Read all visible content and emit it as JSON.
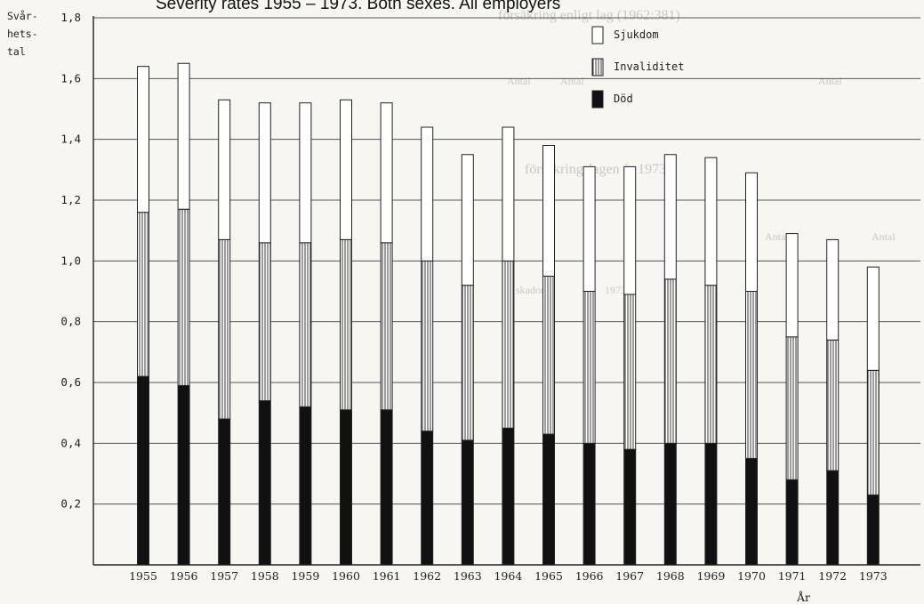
{
  "chart_data": {
    "type": "bar",
    "stacked": true,
    "title": "Severity rates 1955 – 1973. Both sexes. All employers",
    "ylabel": [
      "Svår-",
      "hets-",
      "tal"
    ],
    "xlabel": "År",
    "ylim": [
      0,
      1.8
    ],
    "yticks": [
      "0,2",
      "0,4",
      "0,6",
      "0,8",
      "1,0",
      "1,2",
      "1,4",
      "1,6",
      "1,8"
    ],
    "grid": true,
    "legend_position": "top-right",
    "categories": [
      "1955",
      "1956",
      "1957",
      "1958",
      "1959",
      "1960",
      "1961",
      "1962",
      "1963",
      "1964",
      "1965",
      "1966",
      "1967",
      "1968",
      "1969",
      "1970",
      "1971",
      "1972",
      "1973"
    ],
    "totals": [
      1.64,
      1.65,
      1.53,
      1.52,
      1.52,
      1.53,
      1.52,
      1.44,
      1.35,
      1.44,
      1.38,
      1.31,
      1.31,
      1.35,
      1.34,
      1.29,
      1.09,
      1.07,
      0.98
    ],
    "series": [
      {
        "name": "Död",
        "fill": "solid",
        "values": [
          0.62,
          0.59,
          0.48,
          0.54,
          0.52,
          0.51,
          0.51,
          0.44,
          0.41,
          0.45,
          0.43,
          0.4,
          0.38,
          0.4,
          0.4,
          0.35,
          0.28,
          0.31,
          0.23
        ]
      },
      {
        "name": "Invaliditet",
        "fill": "hatched",
        "values": [
          0.54,
          0.58,
          0.59,
          0.52,
          0.54,
          0.56,
          0.55,
          0.56,
          0.51,
          0.55,
          0.52,
          0.5,
          0.51,
          0.54,
          0.52,
          0.55,
          0.47,
          0.43,
          0.41
        ]
      },
      {
        "name": "Sjukdom",
        "fill": "white",
        "values": [
          0.48,
          0.48,
          0.46,
          0.46,
          0.46,
          0.46,
          0.46,
          0.44,
          0.43,
          0.44,
          0.43,
          0.41,
          0.42,
          0.41,
          0.42,
          0.39,
          0.34,
          0.33,
          0.34
        ]
      }
    ]
  },
  "background_text": [
    "försäkring enligt lag (1962:381)",
    "försäkringslagen år 1973",
    "Antal",
    "Antal",
    "Antal",
    "Antal",
    "Antal",
    "skador",
    "1973"
  ]
}
